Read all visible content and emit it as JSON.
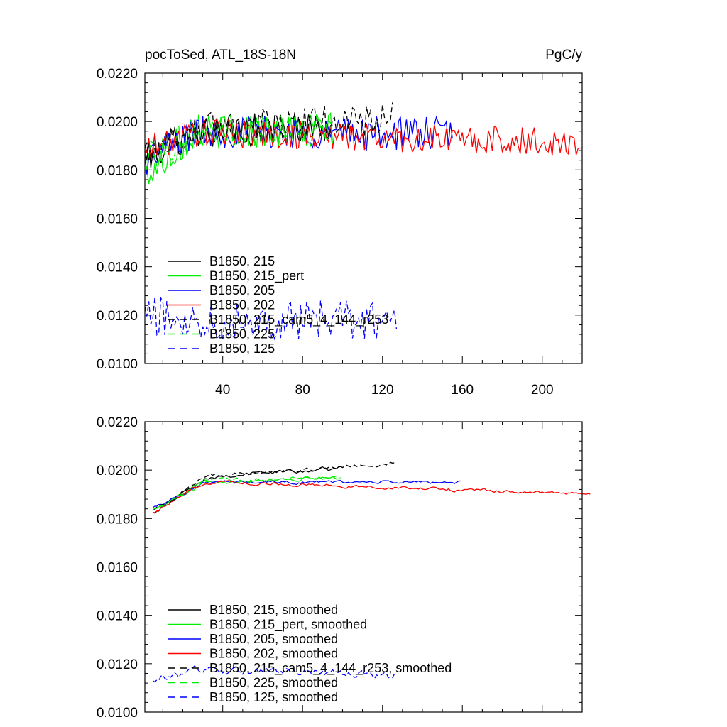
{
  "figure": {
    "title_left": "pocToSed, ATL_18S-18N",
    "title_right": "PgC/y"
  },
  "colors": {
    "black": "#000000",
    "green": "#00ee00",
    "blue": "#0000ff",
    "red": "#ff0000"
  },
  "chart_data": [
    {
      "type": "line",
      "title": "pocToSed, ATL_18S-18N",
      "units": "PgC/y",
      "xlim": [
        1,
        220
      ],
      "ylim": [
        0.01,
        0.022
      ],
      "xticks": [
        40,
        80,
        120,
        160,
        200
      ],
      "xtick_labels": [
        "40",
        "80",
        "120",
        "160",
        "200"
      ],
      "yticks": [
        0.01,
        0.012,
        0.014,
        0.016,
        0.018,
        0.02,
        0.022
      ],
      "ytick_labels": [
        "0.0100",
        "0.0120",
        "0.0140",
        "0.0160",
        "0.0180",
        "0.0200",
        "0.0220"
      ],
      "legend_position": "bottom-left",
      "series": [
        {
          "name": "B1850, 215",
          "color": "black",
          "dash": "solid",
          "length": 95,
          "base": 0.0195,
          "trend": 0.0003,
          "noise": 0.0007,
          "start": 0.0186
        },
        {
          "name": "B1850, 215_pert",
          "color": "green",
          "dash": "solid",
          "length": 95,
          "base": 0.0195,
          "trend": 0.0002,
          "noise": 0.0007,
          "start": 0.0177
        },
        {
          "name": "B1850, 205",
          "color": "blue",
          "dash": "solid",
          "length": 155,
          "base": 0.0196,
          "trend": -0.0001,
          "noise": 0.0007,
          "start": 0.0184
        },
        {
          "name": "B1850, 202",
          "color": "red",
          "dash": "solid",
          "length": 220,
          "base": 0.0196,
          "trend": -0.0005,
          "noise": 0.0006,
          "start": 0.0188
        },
        {
          "name": "B1850, 215_cam5_4_144_r253",
          "color": "black",
          "dash": "dashed",
          "length": 125,
          "base": 0.0196,
          "trend": 0.0005,
          "noise": 0.0007,
          "start": 0.0187
        },
        {
          "name": "B1850, 225",
          "color": "green",
          "dash": "dashed",
          "length": 95,
          "base": 0.0196,
          "trend": 0.0001,
          "noise": 0.0007,
          "start": 0.0185
        },
        {
          "name": "B1850, 125",
          "color": "blue",
          "dash": "dashed",
          "length": 127,
          "base": 0.0118,
          "trend": 0.0,
          "noise": 0.0008,
          "start": 0.012
        }
      ]
    },
    {
      "type": "line",
      "title": "",
      "units": "",
      "xlim": [
        1,
        220
      ],
      "ylim": [
        0.01,
        0.022
      ],
      "xticks": [
        40,
        80,
        120,
        160,
        200
      ],
      "xtick_labels": [],
      "yticks": [
        0.01,
        0.012,
        0.014,
        0.016,
        0.018,
        0.02,
        0.022
      ],
      "ytick_labels": [
        "0.0100",
        "0.0120",
        "0.0140",
        "0.0160",
        "0.0180",
        "0.0200",
        "0.0220"
      ],
      "legend_position": "bottom-left",
      "series": [
        {
          "name": "B1850, 215, smoothed",
          "color": "black",
          "dash": "solid",
          "x_start": 5,
          "length": 95,
          "base": 0.0196,
          "trend": 0.0005,
          "noise": 0.00018,
          "start": 0.0183
        },
        {
          "name": "B1850, 215_pert, smoothed",
          "color": "green",
          "dash": "solid",
          "x_start": 5,
          "length": 95,
          "base": 0.0195,
          "trend": 0.0002,
          "noise": 0.00018,
          "start": 0.0184
        },
        {
          "name": "B1850, 205, smoothed",
          "color": "blue",
          "dash": "solid",
          "x_start": 5,
          "length": 155,
          "base": 0.0195,
          "trend": 0.0,
          "noise": 0.00015,
          "start": 0.0185
        },
        {
          "name": "B1850, 202, smoothed",
          "color": "red",
          "dash": "solid",
          "x_start": 5,
          "length": 220,
          "base": 0.0196,
          "trend": -0.0006,
          "noise": 0.00015,
          "start": 0.0183
        },
        {
          "name": "B1850, 215_cam5_4_144_r253, smoothed",
          "color": "black",
          "dash": "dashed",
          "x_start": 5,
          "length": 123,
          "base": 0.0196,
          "trend": 0.0007,
          "noise": 0.00015,
          "start": 0.0184
        },
        {
          "name": "B1850, 225, smoothed",
          "color": "green",
          "dash": "dashed",
          "x_start": 5,
          "length": 95,
          "base": 0.0195,
          "trend": 0.0002,
          "noise": 0.00015,
          "start": 0.0184
        },
        {
          "name": "B1850, 125, smoothed",
          "color": "blue",
          "dash": "dashed",
          "x_start": 5,
          "length": 122,
          "base": 0.0118,
          "trend": -0.0003,
          "noise": 0.0004,
          "start": 0.0114
        }
      ]
    }
  ]
}
